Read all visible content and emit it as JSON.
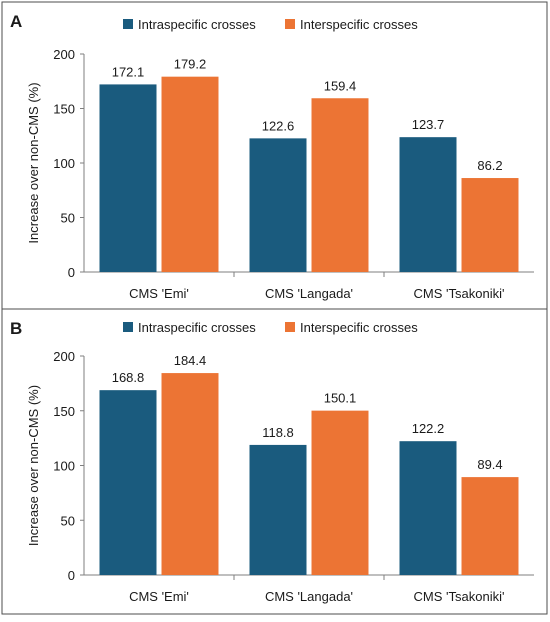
{
  "colors": {
    "intraspecific": "#1a5b7e",
    "interspecific": "#ec7434",
    "axis": "#7f7f7f",
    "border": "#4d4d4d",
    "text": "#1a1a1a"
  },
  "chart_data": [
    {
      "type": "bar",
      "panel_label": "A",
      "categories": [
        "CMS 'Emi'",
        "CMS 'Langada'",
        "CMS 'Tsakoniki'"
      ],
      "series": [
        {
          "name": "Intraspecific crosses",
          "values": [
            172.1,
            122.6,
            123.7
          ],
          "labels": [
            "172.1",
            "122.6",
            "123.7"
          ]
        },
        {
          "name": "Interspecific crosses",
          "values": [
            179.2,
            159.4,
            86.2
          ],
          "labels": [
            "179.2",
            "159.4",
            "86.2"
          ]
        }
      ],
      "ylabel": "Increase over non-CMS (%)",
      "ylim": [
        0,
        200
      ],
      "yticks": [
        "0",
        "50",
        "100",
        "150",
        "200"
      ],
      "legend": "top",
      "grid": false
    },
    {
      "type": "bar",
      "panel_label": "B",
      "categories": [
        "CMS 'Emi'",
        "CMS 'Langada'",
        "CMS 'Tsakoniki'"
      ],
      "series": [
        {
          "name": "Intraspecific crosses",
          "values": [
            168.8,
            118.8,
            122.2
          ],
          "labels": [
            "168.8",
            "118.8",
            "122.2"
          ]
        },
        {
          "name": "Interspecific crosses",
          "values": [
            184.4,
            150.1,
            89.4
          ],
          "labels": [
            "184.4",
            "150.1",
            "89.4"
          ]
        }
      ],
      "ylabel": "Increase over non-CMS (%)",
      "ylim": [
        0,
        200
      ],
      "yticks": [
        "0",
        "50",
        "100",
        "150",
        "200"
      ],
      "legend": "top",
      "grid": false
    }
  ]
}
